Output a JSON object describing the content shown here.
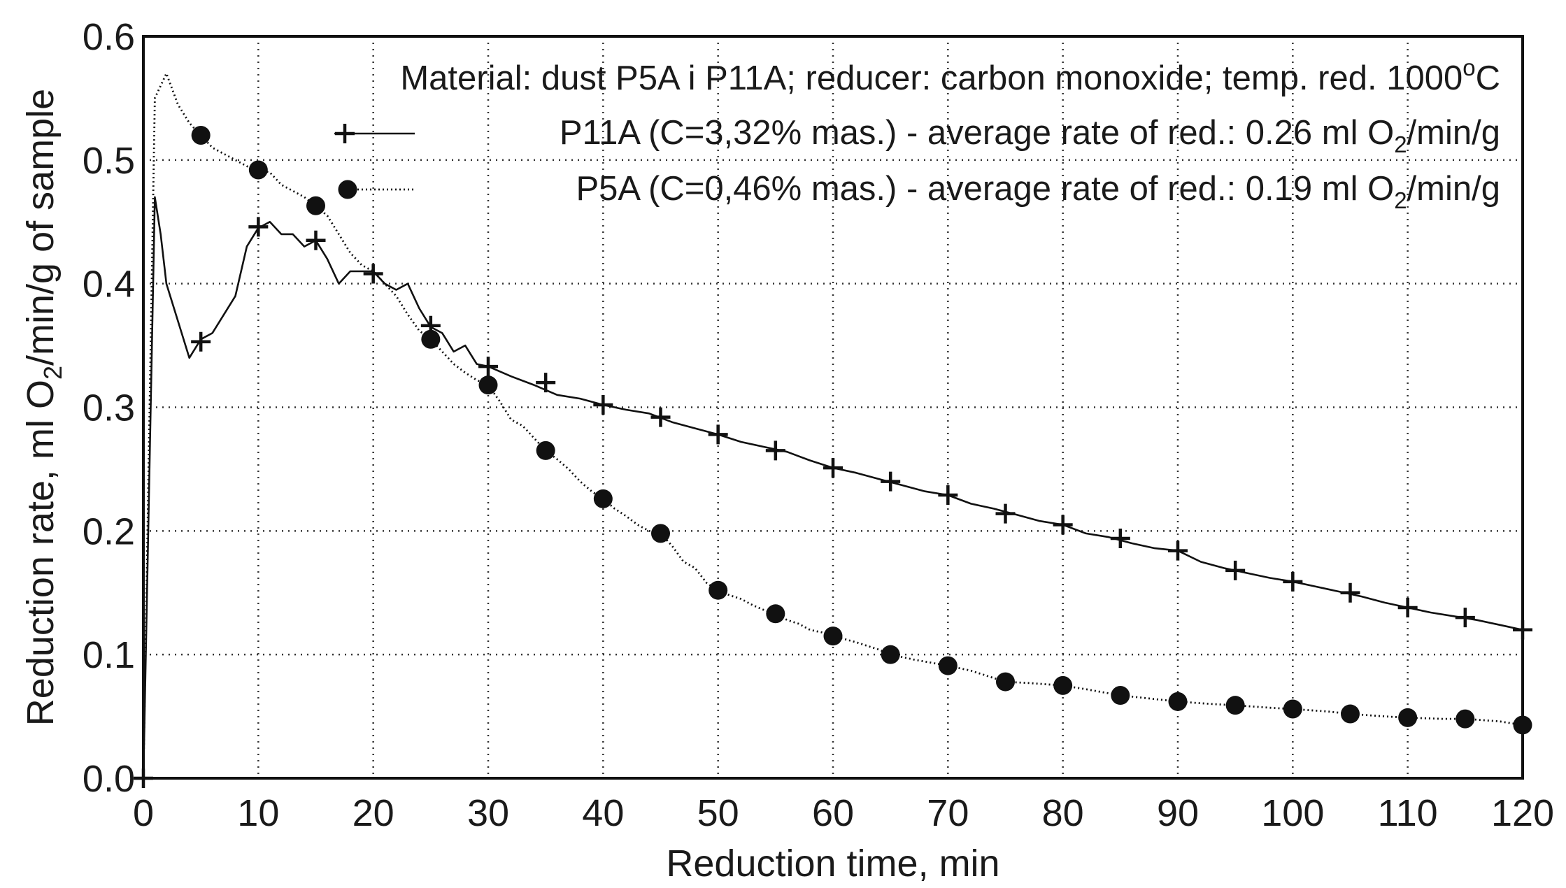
{
  "chart_data": {
    "type": "line",
    "xlabel": "Reduction time, min",
    "ylabel": {
      "prefix": "Reduction rate, ml O",
      "subscript": "2",
      "suffix": "/min/g of sample"
    },
    "xlim": [
      0,
      120
    ],
    "ylim": [
      0,
      0.6
    ],
    "xticks": [
      0,
      10,
      20,
      30,
      40,
      50,
      60,
      70,
      80,
      90,
      100,
      110,
      120
    ],
    "xtick_labels": [
      "0",
      "10",
      "20",
      "30",
      "40",
      "50",
      "60",
      "70",
      "80",
      "90",
      "100",
      "110",
      "120"
    ],
    "yticks": [
      0.0,
      0.1,
      0.2,
      0.3,
      0.4,
      0.5,
      0.6
    ],
    "ytick_labels": [
      "0.0",
      "0.1",
      "0.2",
      "0.3",
      "0.4",
      "0.5",
      "0.6"
    ],
    "grid": "dotted",
    "annotation": {
      "main": "Material: dust P5A i P11A; reducer: carbon monoxide; temp. red. 1000",
      "superscript": "o",
      "unit": "C"
    },
    "series": [
      {
        "name": "P11A",
        "line_style": "solid",
        "marker": "plus",
        "legend": {
          "main": "P11A (C=3,32% mas.) - average rate of red.: 0.26 ml O",
          "sub": "2",
          "tail": "/min/g"
        },
        "line": [
          [
            0,
            0
          ],
          [
            1,
            0.47
          ],
          [
            1.5,
            0.44
          ],
          [
            2,
            0.4
          ],
          [
            3,
            0.37
          ],
          [
            4,
            0.34
          ],
          [
            5,
            0.355
          ],
          [
            6,
            0.36
          ],
          [
            8,
            0.39
          ],
          [
            9,
            0.43
          ],
          [
            10,
            0.445
          ],
          [
            11,
            0.45
          ],
          [
            12,
            0.44
          ],
          [
            13,
            0.44
          ],
          [
            14,
            0.43
          ],
          [
            15,
            0.435
          ],
          [
            16,
            0.42
          ],
          [
            17,
            0.4
          ],
          [
            18,
            0.41
          ],
          [
            19,
            0.41
          ],
          [
            20,
            0.41
          ],
          [
            21,
            0.4
          ],
          [
            22,
            0.395
          ],
          [
            23,
            0.4
          ],
          [
            24,
            0.38
          ],
          [
            25,
            0.365
          ],
          [
            26,
            0.36
          ],
          [
            27,
            0.345
          ],
          [
            28,
            0.35
          ],
          [
            29,
            0.335
          ],
          [
            30,
            0.333
          ],
          [
            32,
            0.325
          ],
          [
            34,
            0.318
          ],
          [
            36,
            0.31
          ],
          [
            38,
            0.307
          ],
          [
            40,
            0.302
          ],
          [
            42,
            0.298
          ],
          [
            44,
            0.295
          ],
          [
            46,
            0.288
          ],
          [
            48,
            0.283
          ],
          [
            50,
            0.278
          ],
          [
            52,
            0.272
          ],
          [
            54,
            0.268
          ],
          [
            56,
            0.264
          ],
          [
            58,
            0.257
          ],
          [
            60,
            0.251
          ],
          [
            62,
            0.247
          ],
          [
            64,
            0.242
          ],
          [
            66,
            0.237
          ],
          [
            68,
            0.232
          ],
          [
            70,
            0.229
          ],
          [
            72,
            0.222
          ],
          [
            74,
            0.218
          ],
          [
            76,
            0.213
          ],
          [
            78,
            0.208
          ],
          [
            80,
            0.205
          ],
          [
            82,
            0.198
          ],
          [
            84,
            0.195
          ],
          [
            86,
            0.19
          ],
          [
            88,
            0.186
          ],
          [
            90,
            0.184
          ],
          [
            92,
            0.175
          ],
          [
            94,
            0.17
          ],
          [
            96,
            0.166
          ],
          [
            98,
            0.162
          ],
          [
            100,
            0.159
          ],
          [
            102,
            0.155
          ],
          [
            104,
            0.151
          ],
          [
            106,
            0.147
          ],
          [
            108,
            0.142
          ],
          [
            110,
            0.138
          ],
          [
            112,
            0.134
          ],
          [
            114,
            0.131
          ],
          [
            116,
            0.128
          ],
          [
            118,
            0.124
          ],
          [
            120,
            0.12
          ]
        ],
        "markers": [
          [
            0,
            0
          ],
          [
            5,
            0.353
          ],
          [
            10,
            0.446
          ],
          [
            15,
            0.435
          ],
          [
            20,
            0.408
          ],
          [
            25,
            0.366
          ],
          [
            30,
            0.333
          ],
          [
            35,
            0.32
          ],
          [
            40,
            0.302
          ],
          [
            45,
            0.292
          ],
          [
            50,
            0.278
          ],
          [
            55,
            0.265
          ],
          [
            60,
            0.251
          ],
          [
            65,
            0.24
          ],
          [
            70,
            0.229
          ],
          [
            75,
            0.214
          ],
          [
            80,
            0.205
          ],
          [
            85,
            0.194
          ],
          [
            90,
            0.184
          ],
          [
            95,
            0.168
          ],
          [
            100,
            0.159
          ],
          [
            105,
            0.15
          ],
          [
            110,
            0.138
          ],
          [
            115,
            0.13
          ],
          [
            120,
            0.12
          ]
        ]
      },
      {
        "name": "P5A",
        "line_style": "dotted",
        "marker": "circle",
        "legend": {
          "main": "P5A (C=0,46% mas.) - average rate of red.: 0.19 ml O",
          "sub": "2",
          "tail": "/min/g"
        },
        "line": [
          [
            0,
            0
          ],
          [
            1,
            0.55
          ],
          [
            2,
            0.57
          ],
          [
            3,
            0.545
          ],
          [
            4,
            0.53
          ],
          [
            5,
            0.52
          ],
          [
            6,
            0.51
          ],
          [
            7,
            0.505
          ],
          [
            8,
            0.5
          ],
          [
            9,
            0.495
          ],
          [
            10,
            0.492
          ],
          [
            11,
            0.49
          ],
          [
            12,
            0.48
          ],
          [
            13,
            0.475
          ],
          [
            14,
            0.47
          ],
          [
            15,
            0.463
          ],
          [
            16,
            0.455
          ],
          [
            17,
            0.44
          ],
          [
            18,
            0.425
          ],
          [
            19,
            0.415
          ],
          [
            20,
            0.41
          ],
          [
            21,
            0.4
          ],
          [
            22,
            0.39
          ],
          [
            23,
            0.375
          ],
          [
            24,
            0.362
          ],
          [
            25,
            0.355
          ],
          [
            26,
            0.345
          ],
          [
            27,
            0.335
          ],
          [
            28,
            0.328
          ],
          [
            29,
            0.322
          ],
          [
            30,
            0.318
          ],
          [
            31,
            0.305
          ],
          [
            32,
            0.29
          ],
          [
            33,
            0.285
          ],
          [
            34,
            0.275
          ],
          [
            35,
            0.265
          ],
          [
            36,
            0.258
          ],
          [
            37,
            0.25
          ],
          [
            38,
            0.24
          ],
          [
            39,
            0.232
          ],
          [
            40,
            0.226
          ],
          [
            41,
            0.218
          ],
          [
            42,
            0.212
          ],
          [
            43,
            0.205
          ],
          [
            44,
            0.2
          ],
          [
            45,
            0.198
          ],
          [
            46,
            0.188
          ],
          [
            47,
            0.175
          ],
          [
            48,
            0.17
          ],
          [
            49,
            0.158
          ],
          [
            50,
            0.152
          ],
          [
            51,
            0.148
          ],
          [
            52,
            0.145
          ],
          [
            53,
            0.14
          ],
          [
            54,
            0.136
          ],
          [
            55,
            0.133
          ],
          [
            56,
            0.128
          ],
          [
            57,
            0.125
          ],
          [
            58,
            0.12
          ],
          [
            59,
            0.118
          ],
          [
            60,
            0.115
          ],
          [
            62,
            0.11
          ],
          [
            64,
            0.104
          ],
          [
            65,
            0.1
          ],
          [
            67,
            0.096
          ],
          [
            70,
            0.091
          ],
          [
            72,
            0.087
          ],
          [
            75,
            0.078
          ],
          [
            77,
            0.077
          ],
          [
            80,
            0.075
          ],
          [
            82,
            0.072
          ],
          [
            85,
            0.067
          ],
          [
            88,
            0.064
          ],
          [
            90,
            0.062
          ],
          [
            93,
            0.06
          ],
          [
            95,
            0.059
          ],
          [
            98,
            0.057
          ],
          [
            100,
            0.056
          ],
          [
            103,
            0.054
          ],
          [
            105,
            0.052
          ],
          [
            108,
            0.05
          ],
          [
            110,
            0.049
          ],
          [
            113,
            0.048
          ],
          [
            115,
            0.048
          ],
          [
            118,
            0.046
          ],
          [
            120,
            0.043
          ]
        ],
        "markers": [
          [
            5,
            0.52
          ],
          [
            10,
            0.492
          ],
          [
            15,
            0.463
          ],
          [
            25,
            0.355
          ],
          [
            30,
            0.318
          ],
          [
            35,
            0.265
          ],
          [
            40,
            0.226
          ],
          [
            45,
            0.198
          ],
          [
            50,
            0.152
          ],
          [
            55,
            0.133
          ],
          [
            60,
            0.115
          ],
          [
            65,
            0.1
          ],
          [
            70,
            0.091
          ],
          [
            75,
            0.078
          ],
          [
            80,
            0.075
          ],
          [
            85,
            0.067
          ],
          [
            90,
            0.062
          ],
          [
            95,
            0.059
          ],
          [
            100,
            0.056
          ],
          [
            105,
            0.052
          ],
          [
            110,
            0.049
          ],
          [
            115,
            0.048
          ],
          [
            120,
            0.043
          ]
        ]
      }
    ]
  }
}
